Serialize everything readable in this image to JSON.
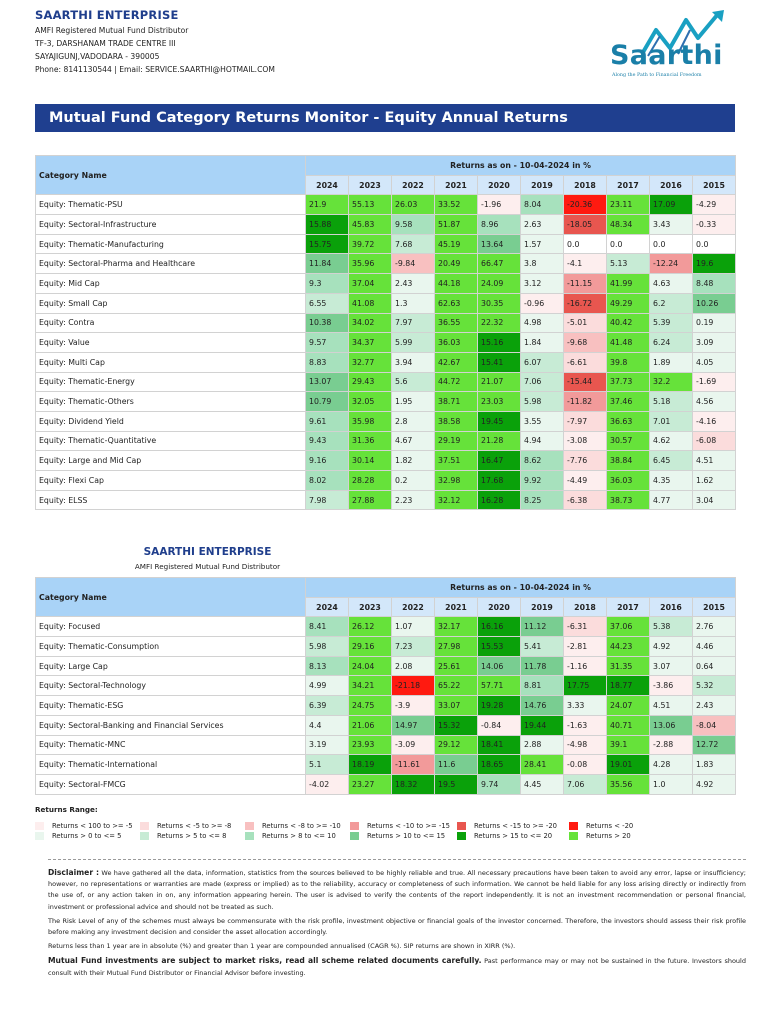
{
  "company": {
    "name": "SAARTHI ENTERPRISE",
    "lines": [
      "AMFI Registered Mutual Fund Distributor",
      "TF-3, DARSHANAM TRADE CENTRE III",
      "SAYAJIGUNJ,VADODARA - 390005",
      "Phone: 8141130544 | Email: SERVICE.SAARTHI@HOTMAIL.COM"
    ]
  },
  "logo": {
    "word": "Saarthi",
    "tagline": "Along the Path to Financial Freedom"
  },
  "report_title": "Mutual Fund Category Returns Monitor - Equity Annual Returns",
  "table_headers": {
    "category": "Category Name",
    "group": "Returns as on - 10-04-2024  in %",
    "years": [
      "2024",
      "2023",
      "2022",
      "2021",
      "2020",
      "2019",
      "2018",
      "2017",
      "2016",
      "2015"
    ]
  },
  "colors": {
    "neg_0_5": "#fdeeee",
    "neg_5_8": "#fbdcdc",
    "neg_8_10": "#f8c0c0",
    "neg_10_15": "#f29a9a",
    "neg_15_20": "#e8564f",
    "neg_20": "#ff1a10",
    "pos_0_5": "#e9f6ee",
    "pos_5_8": "#c7ebd5",
    "pos_8_10": "#a7e1bd",
    "pos_10_15": "#79cd91",
    "pos_15_20": "#0aa10a",
    "pos_20": "#66e23a"
  },
  "table1": [
    {
      "name": "Equity: Thematic-PSU",
      "values": [
        "21.9",
        "55.13",
        "26.03",
        "33.52",
        "-1.96",
        "8.04",
        "-20.36",
        "23.11",
        "17.09",
        "-4.29"
      ]
    },
    {
      "name": "Equity: Sectoral-Infrastructure",
      "values": [
        "15.88",
        "45.83",
        "9.58",
        "51.87",
        "8.96",
        "2.63",
        "-18.05",
        "48.34",
        "3.43",
        "-0.33"
      ]
    },
    {
      "name": "Equity: Thematic-Manufacturing",
      "values": [
        "15.75",
        "39.72",
        "7.68",
        "45.19",
        "13.64",
        "1.57",
        "0.0",
        "0.0",
        "0.0",
        "0.0"
      ]
    },
    {
      "name": "Equity: Sectoral-Pharma and Healthcare",
      "values": [
        "11.84",
        "35.96",
        "-9.84",
        "20.49",
        "66.47",
        "3.8",
        "-4.1",
        "5.13",
        "-12.24",
        "19.6"
      ]
    },
    {
      "name": "Equity: Mid Cap",
      "values": [
        "9.3",
        "37.04",
        "2.43",
        "44.18",
        "24.09",
        "3.12",
        "-11.15",
        "41.99",
        "4.63",
        "8.48"
      ]
    },
    {
      "name": "Equity: Small Cap",
      "values": [
        "6.55",
        "41.08",
        "1.3",
        "62.63",
        "30.35",
        "-0.96",
        "-16.72",
        "49.29",
        "6.2",
        "10.26"
      ]
    },
    {
      "name": "Equity: Contra",
      "values": [
        "10.38",
        "34.02",
        "7.97",
        "36.55",
        "22.32",
        "4.98",
        "-5.01",
        "40.42",
        "5.39",
        "0.19"
      ]
    },
    {
      "name": "Equity: Value",
      "values": [
        "9.57",
        "34.37",
        "5.99",
        "36.03",
        "15.16",
        "1.84",
        "-9.68",
        "41.48",
        "6.24",
        "3.09"
      ]
    },
    {
      "name": "Equity: Multi Cap",
      "values": [
        "8.83",
        "32.77",
        "3.94",
        "42.67",
        "15.41",
        "6.07",
        "-6.61",
        "39.8",
        "1.89",
        "4.05"
      ]
    },
    {
      "name": "Equity: Thematic-Energy",
      "values": [
        "13.07",
        "29.43",
        "5.6",
        "44.72",
        "21.07",
        "7.06",
        "-15.44",
        "37.73",
        "32.2",
        "-1.69"
      ]
    },
    {
      "name": "Equity: Thematic-Others",
      "values": [
        "10.79",
        "32.05",
        "1.95",
        "38.71",
        "23.03",
        "5.98",
        "-11.82",
        "37.46",
        "5.18",
        "4.56"
      ]
    },
    {
      "name": "Equity: Dividend Yield",
      "values": [
        "9.61",
        "35.98",
        "2.8",
        "38.58",
        "19.45",
        "3.55",
        "-7.97",
        "36.63",
        "7.01",
        "-4.16"
      ]
    },
    {
      "name": "Equity: Thematic-Quantitative",
      "values": [
        "9.43",
        "31.36",
        "4.67",
        "29.19",
        "21.28",
        "4.94",
        "-3.08",
        "30.57",
        "4.62",
        "-6.08"
      ]
    },
    {
      "name": "Equity: Large and Mid Cap",
      "values": [
        "9.16",
        "30.14",
        "1.82",
        "37.51",
        "16.47",
        "8.62",
        "-7.76",
        "38.84",
        "6.45",
        "4.51"
      ]
    },
    {
      "name": "Equity: Flexi Cap",
      "values": [
        "8.02",
        "28.28",
        "0.2",
        "32.98",
        "17.68",
        "9.92",
        "-4.49",
        "36.03",
        "4.35",
        "1.62"
      ]
    },
    {
      "name": "Equity: ELSS",
      "values": [
        "7.98",
        "27.88",
        "2.23",
        "32.12",
        "16.28",
        "8.25",
        "-6.38",
        "38.73",
        "4.77",
        "3.04"
      ]
    }
  ],
  "table2": [
    {
      "name": "Equity: Focused",
      "values": [
        "8.41",
        "26.12",
        "1.07",
        "32.17",
        "16.16",
        "11.12",
        "-6.31",
        "37.06",
        "5.38",
        "2.76"
      ]
    },
    {
      "name": "Equity: Thematic-Consumption",
      "values": [
        "5.98",
        "29.16",
        "7.23",
        "27.98",
        "15.53",
        "5.41",
        "-2.81",
        "44.23",
        "4.92",
        "4.46"
      ]
    },
    {
      "name": "Equity: Large Cap",
      "values": [
        "8.13",
        "24.04",
        "2.08",
        "25.61",
        "14.06",
        "11.78",
        "-1.16",
        "31.35",
        "3.07",
        "0.64"
      ]
    },
    {
      "name": "Equity: Sectoral-Technology",
      "values": [
        "4.99",
        "34.21",
        "-21.18",
        "65.22",
        "57.71",
        "8.81",
        "17.75",
        "18.77",
        "-3.86",
        "5.32"
      ]
    },
    {
      "name": "Equity: Thematic-ESG",
      "values": [
        "6.39",
        "24.75",
        "-3.9",
        "33.07",
        "19.28",
        "14.76",
        "3.33",
        "24.07",
        "4.51",
        "2.43"
      ]
    },
    {
      "name": "Equity: Sectoral-Banking and Financial Services",
      "values": [
        "4.4",
        "21.06",
        "14.97",
        "15.32",
        "-0.84",
        "19.44",
        "-1.63",
        "40.71",
        "13.06",
        "-8.04"
      ]
    },
    {
      "name": "Equity: Thematic-MNC",
      "values": [
        "3.19",
        "23.93",
        "-3.09",
        "29.12",
        "18.41",
        "2.88",
        "-4.98",
        "39.1",
        "-2.88",
        "12.72"
      ]
    },
    {
      "name": "Equity: Thematic-International",
      "values": [
        "5.1",
        "18.19",
        "-11.61",
        "11.6",
        "18.65",
        "28.41",
        "-0.08",
        "19.01",
        "4.28",
        "1.83"
      ]
    },
    {
      "name": "Equity: Sectoral-FMCG",
      "values": [
        "-4.02",
        "23.27",
        "18.32",
        "19.5",
        "9.74",
        "4.45",
        "7.06",
        "35.56",
        "1.0",
        "4.92"
      ]
    }
  ],
  "second_header": {
    "name": "SAARTHI ENTERPRISE",
    "line": "AMFI Registered Mutual Fund Distributor"
  },
  "returns_range": {
    "title": "Returns Range:",
    "items": [
      {
        "label": "Returns < 100 to >= -5",
        "key": "neg_0_5"
      },
      {
        "label": "Returns < -5 to >= -8",
        "key": "neg_5_8"
      },
      {
        "label": "Returns < -8 to >= -10",
        "key": "neg_8_10"
      },
      {
        "label": "Returns < -10 to >= -15",
        "key": "neg_10_15"
      },
      {
        "label": "Returns < -15 to >= -20",
        "key": "neg_15_20"
      },
      {
        "label": "Returns < -20",
        "key": "neg_20"
      },
      {
        "label": "Returns > 0 to <= 5",
        "key": "pos_0_5"
      },
      {
        "label": "Returns > 5 to <= 8",
        "key": "pos_5_8"
      },
      {
        "label": "Returns > 8 to <= 10",
        "key": "pos_8_10"
      },
      {
        "label": "Returns > 10 to <= 15",
        "key": "pos_10_15"
      },
      {
        "label": "Returns > 15 to <= 20",
        "key": "pos_15_20"
      },
      {
        "label": "Returns > 20",
        "key": "pos_20"
      }
    ]
  },
  "disclaimer": {
    "label": "Disclaimer :",
    "p1": "We have gathered all the data, information, statistics from the sources believed to be highly reliable and true. All necessary precautions have been taken to avoid any error, lapse or insufficiency; however, no representations or warranties are made (express or implied) as to the reliability, accuracy or completeness of such information. We cannot be held liable for any loss arising directly or indirectly from the use of, or any action taken in on, any information appearing herein. The user is advised to verify the contents of the report independently. It is not an investment recommendation or personal financial, investment or professional advice and should not be treated as such.",
    "p2": "The Risk Level of any of the schemes must always be commensurate with the risk profile, investment objective or financial goals of the investor concerned. Therefore, the investors should assess their risk profile before making any investment decision and consider the asset allocation accordingly.",
    "p3": "Returns less than 1 year are in absolute (%) and greater than 1 year are compounded annualised (CAGR %). SIP returns are shown in XIRR (%).",
    "strong": "Mutual Fund investments are subject to market risks, read all scheme related documents carefully.",
    "p4": "Past performance may or may not be sustained in the future. Investors should consult with their Mutual Fund Distributor or Financial Advisor before investing."
  }
}
